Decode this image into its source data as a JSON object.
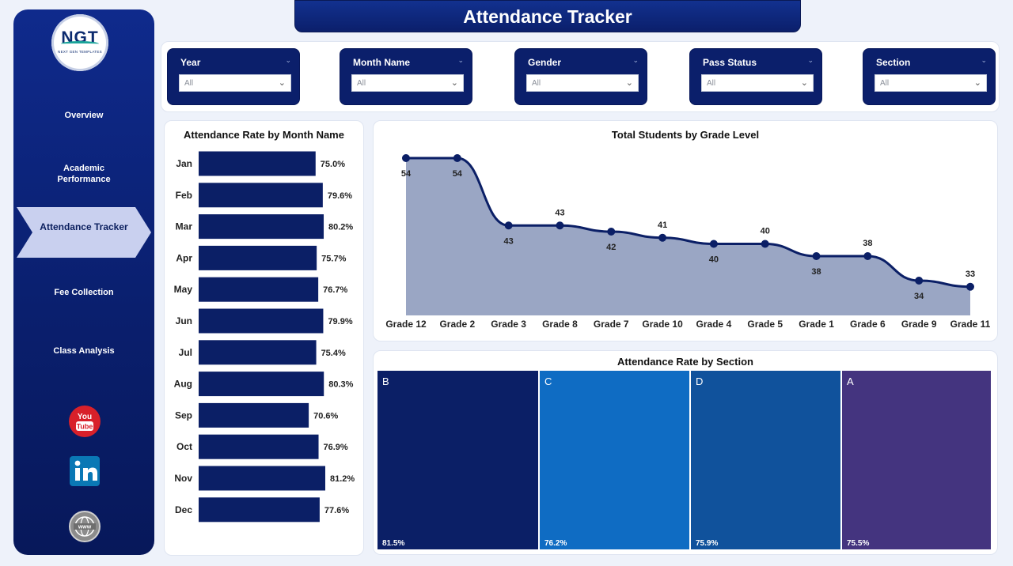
{
  "app_title": "Attendance Tracker",
  "logo": {
    "mark": "NGT",
    "sub": "NEXT GEN TEMPLATES"
  },
  "nav": [
    "Overview",
    "Academic Performance",
    "Attendance Tracker",
    "Fee Collection",
    "Class Analysis"
  ],
  "active_nav": "Attendance Tracker",
  "social": [
    {
      "name": "youtube-icon",
      "label": "You Tube",
      "color": "#d8202a"
    },
    {
      "name": "linkedin-icon",
      "label": "in",
      "color": "#0a78b5"
    },
    {
      "name": "web-icon",
      "label": "www",
      "color": "#7a7a7a"
    }
  ],
  "filters": [
    {
      "label": "Year",
      "value": "All"
    },
    {
      "label": "Month Name",
      "value": "All"
    },
    {
      "label": "Gender",
      "value": "All"
    },
    {
      "label": "Pass Status",
      "value": "All"
    },
    {
      "label": "Section",
      "value": "All"
    }
  ],
  "charts": {
    "month_title": "Attendance Rate by Month Name",
    "grade_title": "Total Students by Grade Level",
    "section_title": "Attendance Rate by Section"
  },
  "chart_data": [
    {
      "type": "bar",
      "orientation": "horizontal",
      "title": "Attendance Rate by Month Name",
      "categories": [
        "Jan",
        "Feb",
        "Mar",
        "Apr",
        "May",
        "Jun",
        "Jul",
        "Aug",
        "Sep",
        "Oct",
        "Nov",
        "Dec"
      ],
      "values": [
        75.0,
        79.6,
        80.2,
        75.7,
        76.7,
        79.9,
        75.4,
        80.3,
        70.6,
        76.9,
        81.2,
        77.6
      ],
      "value_labels": [
        "75.0%",
        "79.6%",
        "80.2%",
        "75.7%",
        "76.7%",
        "79.9%",
        "75.4%",
        "80.3%",
        "70.6%",
        "76.9%",
        "81.2%",
        "77.6%"
      ],
      "bar_color": "#0b1f66"
    },
    {
      "type": "area",
      "title": "Total Students by Grade Level",
      "categories": [
        "Grade 12",
        "Grade 2",
        "Grade 3",
        "Grade 8",
        "Grade 7",
        "Grade 10",
        "Grade 4",
        "Grade 5",
        "Grade 1",
        "Grade 6",
        "Grade 9",
        "Grade 11"
      ],
      "values": [
        54,
        54,
        43,
        43,
        42,
        41,
        40,
        40,
        38,
        38,
        34,
        33
      ],
      "line_color": "#0b1f66",
      "fill_color": "#9aa6c4"
    },
    {
      "type": "treemap",
      "title": "Attendance Rate by Section",
      "categories": [
        "B",
        "C",
        "D",
        "A"
      ],
      "values": [
        81.5,
        76.2,
        75.9,
        75.5
      ],
      "value_labels": [
        "81.5%",
        "76.2%",
        "75.9%",
        "75.5%"
      ],
      "colors": [
        "#0b1f66",
        "#0f6cc3",
        "#10529c",
        "#44347f"
      ]
    }
  ]
}
